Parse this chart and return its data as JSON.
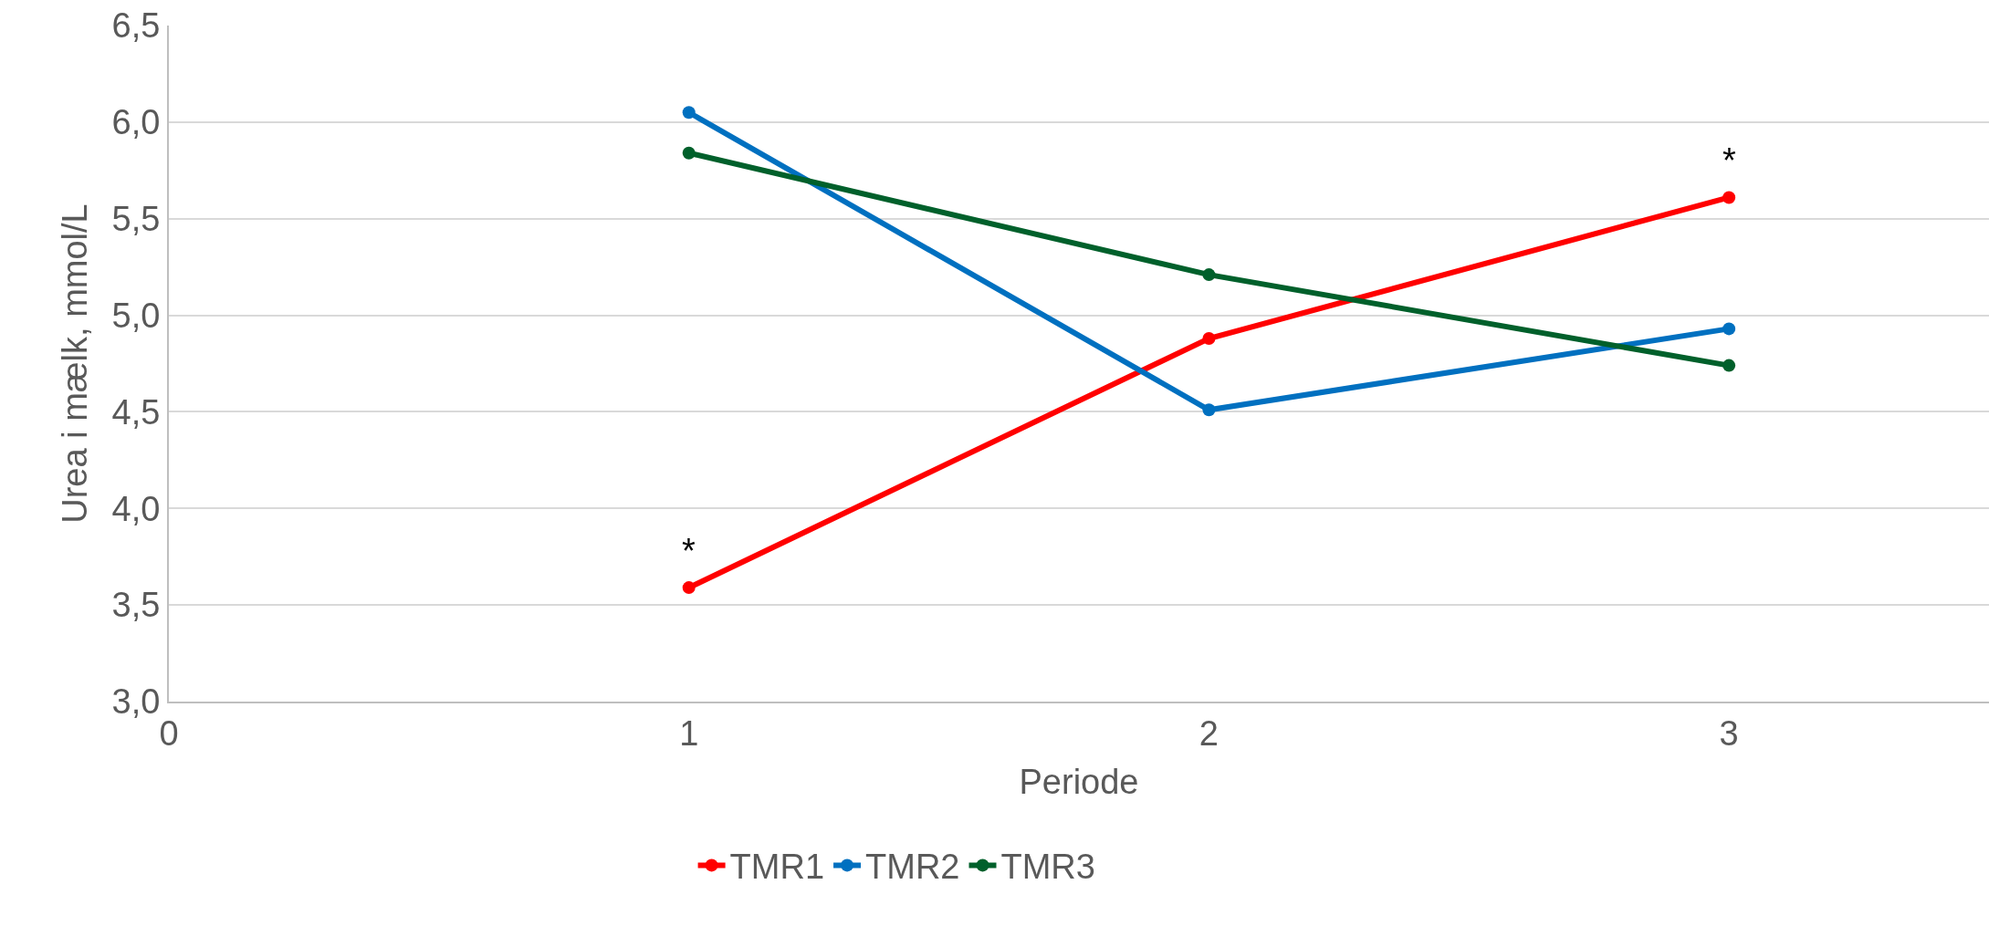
{
  "chart_data": {
    "type": "line",
    "xlabel": "Periode",
    "ylabel": "Urea i mælk, mmol/L",
    "x": [
      1,
      2,
      3
    ],
    "series": [
      {
        "name": "TMR1",
        "color": "#ff0000",
        "values": [
          3.59,
          4.88,
          5.61
        ]
      },
      {
        "name": "TMR2",
        "color": "#0070c0",
        "values": [
          6.05,
          4.51,
          4.93
        ]
      },
      {
        "name": "TMR3",
        "color": "#00602b",
        "values": [
          5.84,
          5.21,
          4.74
        ]
      }
    ],
    "xlim": [
      0,
      3.5
    ],
    "xticks": [
      0,
      1,
      2,
      3
    ],
    "ylim": [
      3,
      6.5
    ],
    "yticks": [
      {
        "value": 3,
        "label": "3,0"
      },
      {
        "value": 3.5,
        "label": "3,5"
      },
      {
        "value": 4,
        "label": "4,0"
      },
      {
        "value": 4.5,
        "label": "4,5"
      },
      {
        "value": 5,
        "label": "5,0"
      },
      {
        "value": 5.5,
        "label": "5,5"
      },
      {
        "value": 6,
        "label": "6,0"
      },
      {
        "value": 6.5,
        "label": "6,5"
      }
    ],
    "grid": "y",
    "legend": "bottom",
    "marker": "circle",
    "line_style": "solid",
    "annotations": [
      {
        "text": "*",
        "x": 1,
        "y": 3.59
      },
      {
        "text": "*",
        "x": 3,
        "y": 5.61
      }
    ]
  }
}
